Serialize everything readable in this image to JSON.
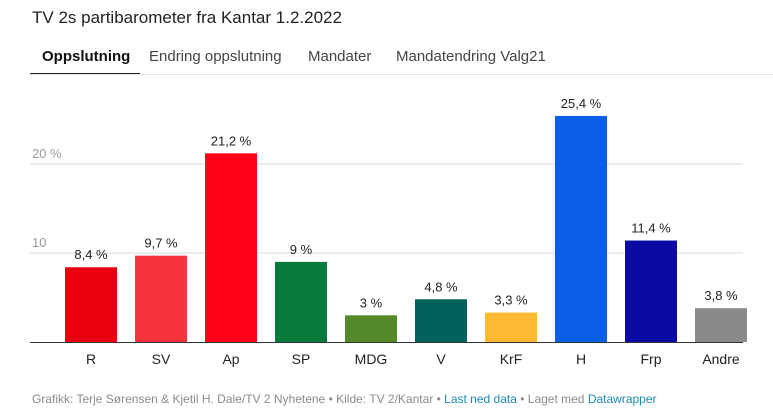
{
  "title": "TV 2s partibarometer fra Kantar 1.2.2022",
  "tabs": [
    {
      "label": "Oppslutning",
      "active": true
    },
    {
      "label": "Endring oppslutning",
      "active": false
    },
    {
      "label": "Mandater",
      "active": false
    },
    {
      "label": "Mandatendring Valg21",
      "active": false
    }
  ],
  "chart_data": {
    "type": "bar",
    "categories": [
      "R",
      "SV",
      "Ap",
      "SP",
      "MDG",
      "V",
      "KrF",
      "H",
      "Frp",
      "Andre"
    ],
    "values": [
      8.4,
      9.7,
      21.2,
      9,
      3,
      4.8,
      3.3,
      25.4,
      11.4,
      3.8
    ],
    "value_labels": [
      "8,4 %",
      "9,7 %",
      "21,2 %",
      "9 %",
      "3 %",
      "4,8 %",
      "3,3 %",
      "25,4 %",
      "11,4 %",
      "3,8 %"
    ],
    "colors": [
      "#e8000f",
      "#f7333d",
      "#ff0218",
      "#087a3c",
      "#56892a",
      "#00615d",
      "#fdb931",
      "#0b5ee7",
      "#0c0aa4",
      "#8a8a8a"
    ],
    "yticks": [
      {
        "value": 20,
        "label": "20 %"
      },
      {
        "value": 10,
        "label": "10"
      }
    ],
    "ylim": [
      0,
      27
    ],
    "grid": true,
    "xlabel": "",
    "ylabel": ""
  },
  "footer": {
    "text": "Grafikk: Terje Sørensen & Kjetil H. Dale/TV 2 Nyhetene • Kilde: TV 2/Kantar •",
    "download_link": "Last ned data",
    "made_with": "• Laget med",
    "tool_link": "Datawrapper"
  }
}
